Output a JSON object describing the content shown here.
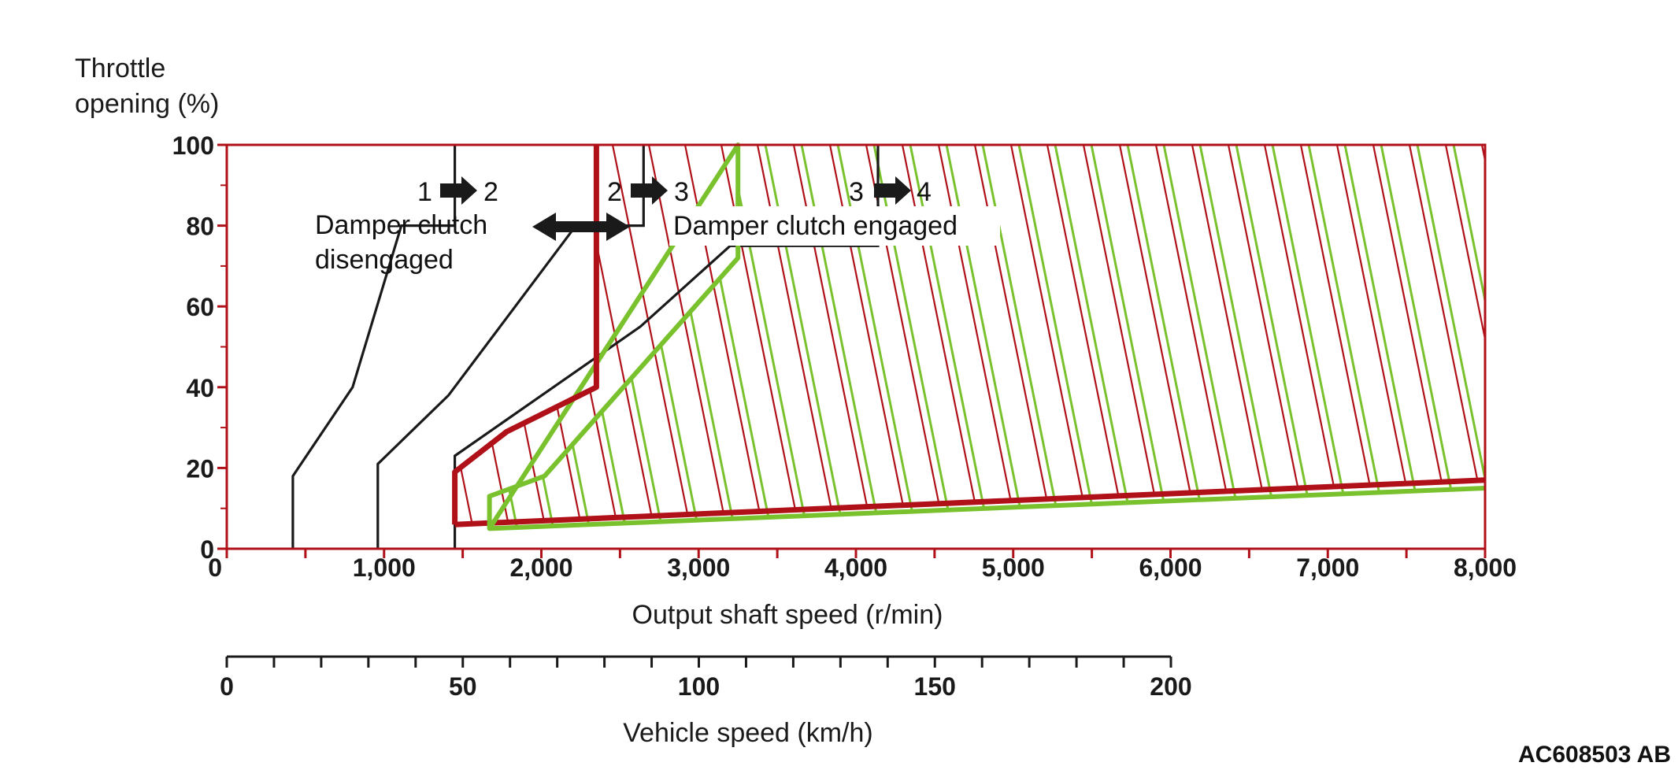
{
  "chart_data": {
    "type": "line",
    "title": "",
    "ylabel_line1": "Throttle",
    "ylabel_line2": "opening (%)",
    "xlabel": "Output shaft speed (r/min)",
    "xlim": [
      0,
      8000
    ],
    "ylim": [
      0,
      100
    ],
    "x_ticks": [
      0,
      1000,
      2000,
      3000,
      4000,
      5000,
      6000,
      7000,
      8000
    ],
    "x_tick_labels": [
      "0",
      "1,000",
      "2,000",
      "3,000",
      "4,000",
      "5,000",
      "6,000",
      "7,000",
      "8,000"
    ],
    "y_ticks": [
      0,
      20,
      40,
      60,
      80,
      100
    ],
    "y_tick_labels": [
      "0",
      "20",
      "40",
      "60",
      "80",
      "100"
    ],
    "secondary_axis": {
      "label": "Vehicle speed (km/h)",
      "range": [
        0,
        200
      ],
      "ticks": [
        0,
        50,
        100,
        150,
        200
      ],
      "tick_labels": [
        "0",
        "50",
        "100",
        "150",
        "200"
      ]
    },
    "shift_lines": [
      {
        "label": "1 → 2",
        "from": "1",
        "to": "2",
        "x": [
          420,
          420,
          800,
          1110,
          1250,
          1450,
          1450
        ],
        "y": [
          0,
          18,
          40,
          80,
          80,
          80,
          100
        ]
      },
      {
        "label": "2 → 3",
        "from": "2",
        "to": "3",
        "x": [
          960,
          960,
          1410,
          2220,
          2650,
          2650
        ],
        "y": [
          0,
          21,
          38,
          80,
          80,
          100
        ]
      },
      {
        "label": "3 → 4",
        "from": "3",
        "to": "4",
        "x": [
          1450,
          1450,
          2630,
          3200,
          4140,
          4140
        ],
        "y": [
          0,
          23,
          55,
          75,
          75,
          100
        ]
      }
    ],
    "boundaries": [
      {
        "color": "#b01018",
        "x": [
          1450,
          1450,
          1780,
          2350,
          2350,
          2350,
          8000,
          8000,
          1450
        ],
        "y": [
          6,
          19,
          29,
          40,
          100,
          100,
          100,
          17,
          6
        ]
      },
      {
        "color": "#79c22e",
        "x": [
          1670,
          1670,
          2020,
          3250,
          3250,
          3250,
          8000,
          8000,
          1670
        ],
        "y": [
          5,
          13,
          18,
          72,
          100,
          100,
          100,
          15,
          5
        ]
      }
    ],
    "annotations": {
      "disengaged_line1": "Damper clutch",
      "disengaged_line2": "disengaged",
      "engaged": "Damper clutch engaged",
      "shift_12_from": "1",
      "shift_12_to": "2",
      "shift_23_from": "2",
      "shift_23_to": "3",
      "shift_34_from": "3",
      "shift_34_to": "4"
    },
    "legend": "none",
    "grid": false
  },
  "figure_id": "AC608503 AB",
  "colors": {
    "red": "#b01018",
    "green": "#79c22e",
    "black": "#1a1a1a"
  }
}
